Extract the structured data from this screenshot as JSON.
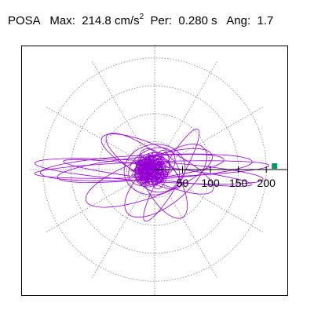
{
  "title": {
    "station": "POSA",
    "max_label": "Max:",
    "max_value": "214.8",
    "max_unit": "cm/s",
    "max_unit_power": "2",
    "per_label": "Per:",
    "per_value": "0.280 s",
    "ang_label": "Ang:",
    "ang_value": "1.7"
  },
  "chart_data": {
    "type": "scatter",
    "projection": "polar",
    "r_max": 225,
    "ring_values": [
      50,
      100,
      150,
      200
    ],
    "spoke_angles_deg": [
      0,
      30,
      60,
      90,
      120,
      150,
      180,
      210,
      240,
      270,
      300,
      330
    ],
    "tick_labels": [
      "50",
      "100",
      "150",
      "200"
    ],
    "tick_values": [
      50,
      100,
      150,
      200
    ],
    "series": [
      {
        "color": "#9400d3",
        "description": "acceleration orbit",
        "loops": [
          {
            "a": 210,
            "b": 14,
            "rot": 2,
            "cx": -5,
            "cy": 0
          },
          {
            "a": 205,
            "b": 18,
            "rot": -4,
            "cx": -10,
            "cy": -3
          },
          {
            "a": 190,
            "b": 22,
            "rot": 3,
            "cx": -15,
            "cy": 4
          },
          {
            "a": 170,
            "b": 12,
            "rot": -7,
            "cx": 5,
            "cy": -6
          },
          {
            "a": 150,
            "b": 20,
            "rot": 6,
            "cx": -25,
            "cy": 2
          },
          {
            "a": 120,
            "b": 35,
            "rot": 20,
            "cx": -10,
            "cy": -15
          },
          {
            "a": 110,
            "b": 30,
            "rot": -25,
            "cx": 5,
            "cy": 10
          },
          {
            "a": 90,
            "b": 40,
            "rot": 40,
            "cx": 20,
            "cy": -20
          },
          {
            "a": 80,
            "b": 25,
            "rot": -35,
            "cx": -20,
            "cy": 15
          },
          {
            "a": 95,
            "b": 18,
            "rot": 60,
            "cx": 30,
            "cy": -10
          },
          {
            "a": 70,
            "b": 30,
            "rot": -60,
            "cx": 15,
            "cy": -25
          },
          {
            "a": 55,
            "b": 45,
            "rot": 10,
            "cx": 0,
            "cy": 0
          },
          {
            "a": 45,
            "b": 30,
            "rot": 30,
            "cx": -5,
            "cy": 5
          },
          {
            "a": 40,
            "b": 35,
            "rot": -20,
            "cx": 5,
            "cy": -5
          },
          {
            "a": 30,
            "b": 25,
            "rot": 50,
            "cx": -8,
            "cy": -3
          },
          {
            "a": 25,
            "b": 20,
            "rot": 0,
            "cx": 3,
            "cy": 4
          },
          {
            "a": 35,
            "b": 15,
            "rot": 80,
            "cx": 10,
            "cy": 0
          },
          {
            "a": 20,
            "b": 18,
            "rot": -45,
            "cx": -3,
            "cy": -8
          }
        ],
        "max_point": {
          "value": 214.8,
          "angle_deg": 1.7
        }
      }
    ],
    "marker_color": "#009966",
    "grid": true,
    "grid_color": "#808080"
  }
}
